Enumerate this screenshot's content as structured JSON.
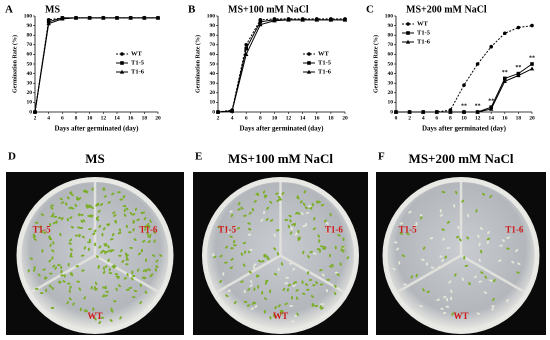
{
  "chart_data": [
    {
      "type": "line",
      "panel": "A",
      "title": "MS",
      "xlabel": "Days after germinated (day)",
      "ylabel": "Germination Rate (%)",
      "x": [
        2,
        4,
        6,
        8,
        10,
        12,
        14,
        16,
        18,
        20
      ],
      "series": [
        {
          "name": "WT",
          "color": "#000000",
          "marker": "circle",
          "values": [
            0,
            96,
            98,
            98,
            98,
            98,
            98,
            98,
            98,
            98
          ]
        },
        {
          "name": "T1-5",
          "color": "#000000",
          "marker": "square",
          "values": [
            0,
            94,
            98,
            98,
            98,
            98,
            98,
            98,
            98,
            98
          ]
        },
        {
          "name": "T1-6",
          "color": "#000000",
          "marker": "triangle",
          "values": [
            0,
            92,
            97,
            98,
            98,
            98,
            98,
            98,
            98,
            98
          ]
        }
      ],
      "xlim": [
        2,
        20
      ],
      "xticks": [
        2,
        4,
        6,
        8,
        10,
        12,
        14,
        16,
        18,
        20
      ],
      "ylim": [
        0,
        100
      ],
      "yticks": [
        0,
        10,
        20,
        30,
        40,
        50,
        60,
        70,
        80,
        90,
        100
      ],
      "legend": "right"
    },
    {
      "type": "line",
      "panel": "B",
      "title": "MS+100 mM NaCl",
      "xlabel": "Days after germinated (day)",
      "ylabel": "Germination Rate (%)",
      "x": [
        2,
        4,
        6,
        8,
        10,
        12,
        14,
        16,
        18,
        20
      ],
      "series": [
        {
          "name": "WT",
          "color": "#000000",
          "marker": "circle",
          "values": [
            0,
            2,
            70,
            96,
            97,
            97,
            97,
            97,
            97,
            97
          ]
        },
        {
          "name": "T1-5",
          "color": "#000000",
          "marker": "square",
          "values": [
            0,
            1,
            66,
            94,
            96,
            96,
            96,
            96,
            96,
            96
          ]
        },
        {
          "name": "T1-6",
          "color": "#000000",
          "marker": "triangle",
          "values": [
            0,
            1,
            60,
            91,
            95,
            96,
            96,
            96,
            96,
            96
          ]
        }
      ],
      "xlim": [
        2,
        20
      ],
      "xticks": [
        2,
        4,
        6,
        8,
        10,
        12,
        14,
        16,
        18,
        20
      ],
      "ylim": [
        0,
        100
      ],
      "yticks": [
        0,
        10,
        20,
        30,
        40,
        50,
        60,
        70,
        80,
        90,
        100
      ],
      "legend": "right"
    },
    {
      "type": "line",
      "panel": "C",
      "title": "MS+200 mM NaCl",
      "xlabel": "Days after germinated (day)",
      "ylabel": "Germination Rate (%)",
      "x": [
        0,
        2,
        4,
        6,
        8,
        10,
        12,
        14,
        16,
        18,
        20
      ],
      "series": [
        {
          "name": "WT",
          "color": "#000000",
          "marker": "circle",
          "values": [
            0,
            0,
            0,
            0,
            2,
            28,
            50,
            68,
            82,
            88,
            90
          ]
        },
        {
          "name": "T1-5",
          "color": "#000000",
          "marker": "square",
          "values": [
            0,
            0,
            0,
            0,
            0,
            0,
            0,
            5,
            35,
            40,
            50
          ]
        },
        {
          "name": "T1-6",
          "color": "#000000",
          "marker": "triangle",
          "values": [
            0,
            0,
            0,
            0,
            0,
            0,
            0,
            3,
            32,
            38,
            45
          ]
        }
      ],
      "xlim": [
        0,
        20
      ],
      "xticks": [
        0,
        2,
        4,
        6,
        8,
        10,
        12,
        14,
        16,
        18,
        20
      ],
      "ylim": [
        0,
        100
      ],
      "yticks": [
        0,
        10,
        20,
        30,
        40,
        50,
        60,
        70,
        80,
        90,
        100
      ],
      "legend": "upper left",
      "annotations": [
        {
          "text": "**",
          "x": 10
        },
        {
          "text": "**",
          "x": 12
        },
        {
          "text": "**",
          "x": 14
        },
        {
          "text": "**",
          "x": 16
        },
        {
          "text": "**",
          "x": 18
        },
        {
          "text": "**",
          "x": 20
        }
      ]
    }
  ],
  "photos": [
    {
      "panel": "D",
      "title": "MS",
      "labels": [
        "T1-5",
        "T1-6",
        "WT"
      ]
    },
    {
      "panel": "E",
      "title": "MS+100 mM NaCl",
      "labels": [
        "T1-5",
        "T1-6",
        "WT"
      ]
    },
    {
      "panel": "F",
      "title": "MS+200 mM NaCl",
      "labels": [
        "T1-5",
        "T1-6",
        "WT"
      ]
    }
  ]
}
